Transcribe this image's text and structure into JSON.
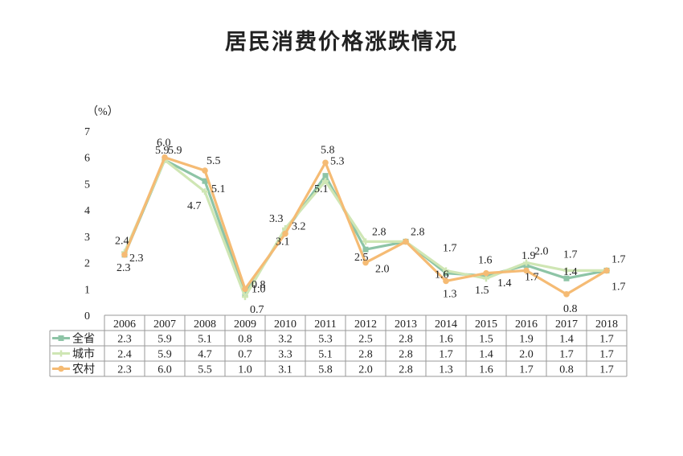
{
  "chart_data": {
    "type": "line",
    "title": "居民消费价格涨跌情况",
    "unit": "（%）",
    "ylim": [
      0,
      7
    ],
    "yticks": [
      "0",
      "1",
      "2",
      "3",
      "4",
      "5",
      "6",
      "7"
    ],
    "categories": [
      "2006",
      "2007",
      "2008",
      "2009",
      "2010",
      "2011",
      "2012",
      "2013",
      "2014",
      "2015",
      "2016",
      "2017",
      "2018"
    ],
    "series": [
      {
        "name": "全省",
        "color": "#8dc4a6",
        "marker": "square",
        "values": [
          2.3,
          5.9,
          5.1,
          0.8,
          3.2,
          5.3,
          2.5,
          2.8,
          1.6,
          1.5,
          1.9,
          1.4,
          1.7
        ],
        "labels": [
          "2.3",
          "5.9",
          "5.1",
          "0.8",
          "3.2",
          "5.3",
          "2.5",
          "2.8",
          "1.6",
          "1.5",
          "1.9",
          "1.4",
          "1.7"
        ]
      },
      {
        "name": "城市",
        "color": "#cfe6b4",
        "marker": "cross",
        "values": [
          2.4,
          5.9,
          4.7,
          0.7,
          3.3,
          5.1,
          2.8,
          2.8,
          1.7,
          1.4,
          2.0,
          1.7,
          1.7
        ],
        "labels": [
          "2.4",
          "5.9",
          "4.7",
          "0.7",
          "3.3",
          "5.1",
          "2.8",
          "2.8",
          "1.7",
          "1.4",
          "2.0",
          "1.7",
          "1.7"
        ]
      },
      {
        "name": "农村",
        "color": "#f5bb74",
        "marker": "circle",
        "values": [
          2.3,
          6.0,
          5.5,
          1.0,
          3.1,
          5.8,
          2.0,
          2.8,
          1.3,
          1.6,
          1.7,
          0.8,
          1.7
        ],
        "labels": [
          "2.3",
          "6.0",
          "5.5",
          "1.0",
          "3.1",
          "5.8",
          "2.0",
          "2.8",
          "1.3",
          "1.6",
          "1.7",
          "0.8",
          "1.7"
        ]
      }
    ],
    "grid": false,
    "legend": "table-left"
  }
}
